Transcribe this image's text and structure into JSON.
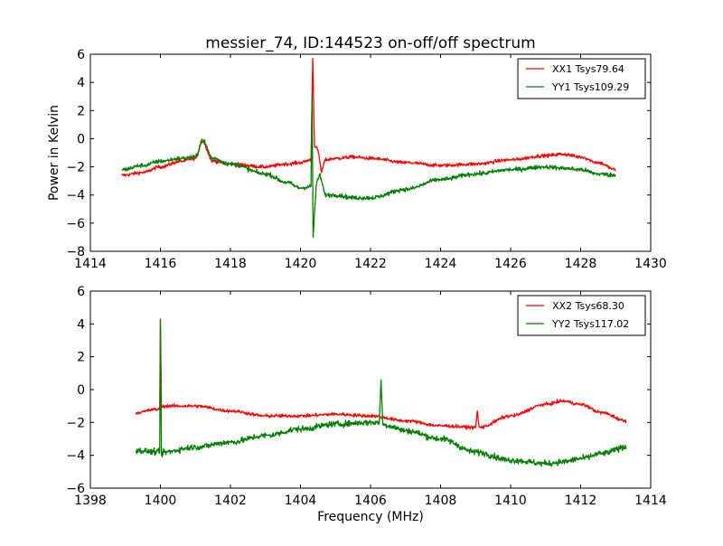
{
  "figure": {
    "title": "messier_74, ID:144523 on-off/off spectrum",
    "background": "#ffffff"
  },
  "chart_data": [
    {
      "type": "line",
      "panel": "top",
      "title": "messier_74, ID:144523 on-off/off spectrum",
      "xlabel": "",
      "ylabel": "Power in Kelvin",
      "xlim": [
        1414,
        1430
      ],
      "ylim": [
        -8,
        6
      ],
      "xticks": [
        "1414",
        "1416",
        "1418",
        "1420",
        "1422",
        "1424",
        "1426",
        "1428",
        "1430"
      ],
      "yticks": [
        "−8",
        "−6",
        "−4",
        "−2",
        "0",
        "2",
        "4",
        "6"
      ],
      "xtick_values": [
        1414,
        1416,
        1418,
        1420,
        1422,
        1424,
        1426,
        1428,
        1430
      ],
      "ytick_values": [
        -8,
        -6,
        -4,
        -2,
        0,
        2,
        4,
        6
      ],
      "grid": false,
      "legend_position": "top-right",
      "series": [
        {
          "name": "XX1 Tsys79.64",
          "color": "#ff0000",
          "noise": 0.12,
          "x": [
            1414.9,
            1415.5,
            1416.0,
            1416.6,
            1417.0,
            1417.2,
            1417.5,
            1418.0,
            1419.0,
            1419.6,
            1420.0,
            1420.3,
            1420.35,
            1420.4,
            1420.5,
            1420.6,
            1420.7,
            1421.0,
            1421.5,
            1422.0,
            1423.0,
            1424.0,
            1425.0,
            1426.0,
            1427.0,
            1427.5,
            1428.0,
            1428.5,
            1429.0
          ],
          "y": [
            -2.6,
            -2.4,
            -2.0,
            -1.6,
            -1.4,
            -0.2,
            -1.6,
            -1.8,
            -2.0,
            -1.8,
            -1.7,
            -1.5,
            5.7,
            -0.5,
            -0.8,
            -2.4,
            -1.5,
            -1.4,
            -1.3,
            -1.4,
            -1.7,
            -1.9,
            -1.8,
            -1.5,
            -1.2,
            -1.1,
            -1.3,
            -1.7,
            -2.2
          ]
        },
        {
          "name": "YY1 Tsys109.29",
          "color": "#008000",
          "noise": 0.15,
          "x": [
            1414.9,
            1415.5,
            1416.0,
            1416.6,
            1417.0,
            1417.2,
            1417.5,
            1418.0,
            1419.0,
            1419.6,
            1420.0,
            1420.3,
            1420.33,
            1420.36,
            1420.45,
            1420.55,
            1420.7,
            1421.0,
            1421.5,
            1422.0,
            1423.0,
            1424.0,
            1425.0,
            1426.0,
            1427.0,
            1427.5,
            1428.0,
            1428.5,
            1429.0
          ],
          "y": [
            -2.2,
            -1.9,
            -1.6,
            -1.4,
            -1.3,
            -0.1,
            -1.4,
            -1.8,
            -2.5,
            -3.1,
            -3.5,
            -3.4,
            3.2,
            -7.0,
            -3.3,
            -2.5,
            -4.0,
            -4.0,
            -4.2,
            -4.2,
            -3.6,
            -2.9,
            -2.5,
            -2.2,
            -2.0,
            -2.1,
            -2.2,
            -2.5,
            -2.6
          ]
        }
      ]
    },
    {
      "type": "line",
      "panel": "bottom",
      "title": "",
      "xlabel": "Frequency (MHz)",
      "ylabel": "",
      "xlim": [
        1398,
        1414
      ],
      "ylim": [
        -6,
        6
      ],
      "xticks": [
        "1398",
        "1400",
        "1402",
        "1404",
        "1406",
        "1408",
        "1410",
        "1412",
        "1414"
      ],
      "yticks": [
        "−6",
        "−4",
        "−2",
        "0",
        "2",
        "4",
        "6"
      ],
      "xtick_values": [
        1398,
        1400,
        1402,
        1404,
        1406,
        1408,
        1410,
        1412,
        1414
      ],
      "ytick_values": [
        -6,
        -4,
        -2,
        0,
        2,
        4,
        6
      ],
      "grid": false,
      "legend_position": "top-right",
      "series": [
        {
          "name": "XX2 Tsys68.30",
          "color": "#ff0000",
          "noise": 0.1,
          "x": [
            1399.3,
            1399.9,
            1399.98,
            1400.0,
            1400.03,
            1400.1,
            1401.0,
            1402.0,
            1403.0,
            1404.0,
            1405.0,
            1406.0,
            1407.0,
            1408.0,
            1409.0,
            1409.05,
            1409.1,
            1410.0,
            1411.0,
            1411.5,
            1412.0,
            1412.6,
            1413.3
          ],
          "y": [
            -1.4,
            -1.2,
            -1.2,
            4.3,
            -1.1,
            -1.0,
            -1.0,
            -1.3,
            -1.6,
            -1.6,
            -1.5,
            -1.6,
            -1.9,
            -2.2,
            -2.3,
            -1.3,
            -2.3,
            -1.6,
            -0.9,
            -0.7,
            -0.9,
            -1.4,
            -1.9
          ]
        },
        {
          "name": "YY2 Tsys117.02",
          "color": "#008000",
          "noise": 0.18,
          "x": [
            1399.3,
            1399.9,
            1399.98,
            1400.0,
            1400.03,
            1400.1,
            1401.0,
            1402.0,
            1403.0,
            1404.0,
            1405.0,
            1406.0,
            1406.25,
            1406.3,
            1406.35,
            1406.5,
            1407.0,
            1408.0,
            1409.0,
            1410.0,
            1411.0,
            1411.5,
            1412.0,
            1412.6,
            1413.3
          ],
          "y": [
            -3.7,
            -3.8,
            -3.8,
            4.2,
            -4.0,
            -3.8,
            -3.5,
            -3.2,
            -2.8,
            -2.4,
            -2.1,
            -2.0,
            -2.0,
            0.6,
            -2.1,
            -2.2,
            -2.5,
            -3.0,
            -3.8,
            -4.3,
            -4.5,
            -4.4,
            -4.2,
            -3.9,
            -3.5
          ]
        }
      ]
    }
  ]
}
